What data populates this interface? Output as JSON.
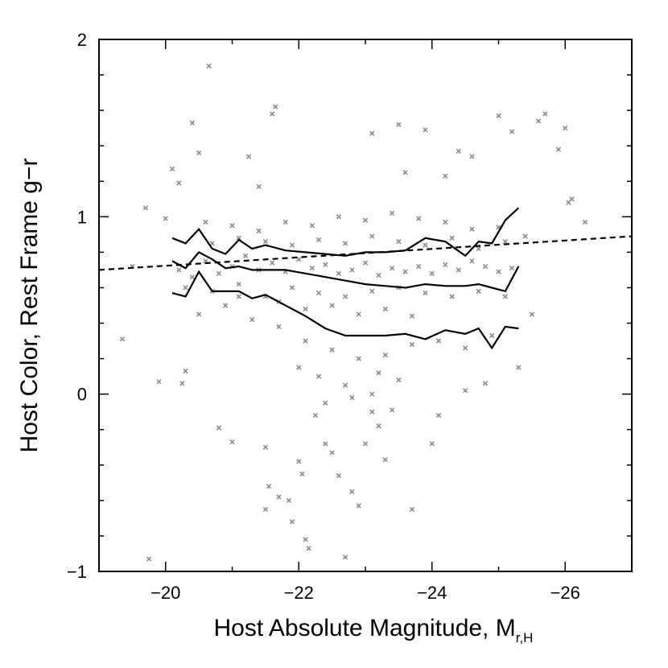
{
  "chart_data": {
    "type": "scatter",
    "xlabel": "Host Absolute Magnitude, M",
    "xlabel_subscript": "r,H",
    "ylabel": "Host Color, Rest Frame g−r",
    "xlim": [
      -19,
      -27
    ],
    "ylim": [
      -1,
      2
    ],
    "x_reversed": true,
    "grid": false,
    "x_ticks": [
      -20,
      -22,
      -24,
      -26
    ],
    "x_tick_labels": [
      "−20",
      "−22",
      "−24",
      "−26"
    ],
    "y_ticks": [
      -1,
      0,
      1,
      2
    ],
    "y_tick_labels": [
      "−1",
      "0",
      "1",
      "2"
    ],
    "point_color": "#8c8c8c",
    "line_color": "#000000",
    "series": [
      {
        "kind": "scatter",
        "points": [
          [
            -19.35,
            0.31
          ],
          [
            -19.5,
            0.72
          ],
          [
            -19.7,
            1.05
          ],
          [
            -19.75,
            -0.93
          ],
          [
            -19.9,
            0.07
          ],
          [
            -20.1,
            1.27
          ],
          [
            -20.2,
            1.19
          ],
          [
            -20.25,
            0.06
          ],
          [
            -20.3,
            0.13
          ],
          [
            -20.4,
            1.53
          ],
          [
            -20.5,
            1.36
          ],
          [
            -20.65,
            1.85
          ],
          [
            -20.8,
            -0.19
          ],
          [
            -21.0,
            -0.27
          ],
          [
            -21.1,
            0.55
          ],
          [
            -21.25,
            1.34
          ],
          [
            -21.4,
            1.17
          ],
          [
            -21.5,
            -0.3
          ],
          [
            -21.6,
            1.58
          ],
          [
            -21.65,
            1.62
          ],
          [
            -21.55,
            -0.52
          ],
          [
            -21.5,
            -0.65
          ],
          [
            -21.7,
            -0.58
          ],
          [
            -21.85,
            -0.6
          ],
          [
            -21.9,
            -0.72
          ],
          [
            -22.0,
            -0.38
          ],
          [
            -22.05,
            -0.45
          ],
          [
            -22.1,
            -0.82
          ],
          [
            -22.15,
            -0.87
          ],
          [
            -22.25,
            -0.12
          ],
          [
            -22.4,
            -0.28
          ],
          [
            -22.5,
            -0.33
          ],
          [
            -22.6,
            -0.46
          ],
          [
            -22.7,
            -0.92
          ],
          [
            -22.8,
            -0.55
          ],
          [
            -22.9,
            -0.63
          ],
          [
            -23.0,
            -0.28
          ],
          [
            -23.1,
            -0.1
          ],
          [
            -23.2,
            -0.18
          ],
          [
            -23.3,
            -0.37
          ],
          [
            -23.4,
            -0.09
          ],
          [
            -23.5,
            1.52
          ],
          [
            -23.1,
            1.47
          ],
          [
            -23.6,
            1.25
          ],
          [
            -23.7,
            -0.65
          ],
          [
            -23.9,
            1.49
          ],
          [
            -24.0,
            -0.28
          ],
          [
            -24.1,
            -0.12
          ],
          [
            -24.2,
            1.23
          ],
          [
            -24.4,
            1.37
          ],
          [
            -24.6,
            1.34
          ],
          [
            -25.0,
            1.57
          ],
          [
            -25.2,
            1.48
          ],
          [
            -25.6,
            1.54
          ],
          [
            -25.7,
            1.58
          ],
          [
            -25.9,
            1.38
          ],
          [
            -26.0,
            1.5
          ],
          [
            -26.1,
            1.1
          ],
          [
            -26.3,
            0.97
          ],
          [
            -26.05,
            1.08
          ],
          [
            -25.5,
            0.45
          ],
          [
            -25.3,
            0.15
          ],
          [
            -24.8,
            0.06
          ],
          [
            -24.5,
            0.02
          ],
          [
            -20.0,
            0.99
          ],
          [
            -20.6,
            0.97
          ],
          [
            -21.0,
            0.95
          ],
          [
            -21.4,
            0.92
          ],
          [
            -21.8,
            0.97
          ],
          [
            -22.2,
            0.95
          ],
          [
            -22.6,
            1.0
          ],
          [
            -23.0,
            0.98
          ],
          [
            -23.4,
            1.02
          ],
          [
            -23.8,
            0.99
          ],
          [
            -24.2,
            0.97
          ],
          [
            -24.6,
            0.93
          ],
          [
            -25.0,
            0.94
          ],
          [
            -25.4,
            0.89
          ],
          [
            -20.2,
            0.7
          ],
          [
            -20.4,
            0.66
          ],
          [
            -20.6,
            0.75
          ],
          [
            -20.8,
            0.68
          ],
          [
            -21.0,
            0.72
          ],
          [
            -21.2,
            0.78
          ],
          [
            -21.4,
            0.7
          ],
          [
            -21.6,
            0.74
          ],
          [
            -21.8,
            0.69
          ],
          [
            -22.0,
            0.76
          ],
          [
            -22.2,
            0.71
          ],
          [
            -22.4,
            0.73
          ],
          [
            -22.6,
            0.68
          ],
          [
            -22.8,
            0.7
          ],
          [
            -23.0,
            0.74
          ],
          [
            -23.2,
            0.67
          ],
          [
            -23.4,
            0.71
          ],
          [
            -23.6,
            0.69
          ],
          [
            -23.8,
            0.72
          ],
          [
            -24.0,
            0.68
          ],
          [
            -24.2,
            0.73
          ],
          [
            -24.4,
            0.7
          ],
          [
            -24.6,
            0.75
          ],
          [
            -24.8,
            0.72
          ],
          [
            -25.0,
            0.69
          ],
          [
            -25.2,
            0.71
          ],
          [
            -20.5,
            0.45
          ],
          [
            -20.9,
            0.5
          ],
          [
            -21.3,
            0.42
          ],
          [
            -21.7,
            0.38
          ],
          [
            -22.1,
            0.3
          ],
          [
            -22.5,
            0.25
          ],
          [
            -22.9,
            0.2
          ],
          [
            -23.3,
            0.22
          ],
          [
            -23.7,
            0.28
          ],
          [
            -24.1,
            0.3
          ],
          [
            -24.5,
            0.26
          ],
          [
            -24.9,
            0.33
          ],
          [
            -22.3,
            0.1
          ],
          [
            -22.7,
            0.05
          ],
          [
            -23.1,
            0.0
          ],
          [
            -23.5,
            0.08
          ],
          [
            -22.0,
            0.15
          ],
          [
            -22.4,
            -0.05
          ],
          [
            -22.8,
            -0.02
          ],
          [
            -23.2,
            0.12
          ],
          [
            -20.7,
            0.85
          ],
          [
            -21.1,
            0.88
          ],
          [
            -21.5,
            0.86
          ],
          [
            -21.9,
            0.84
          ],
          [
            -22.3,
            0.87
          ],
          [
            -22.7,
            0.85
          ],
          [
            -23.1,
            0.89
          ],
          [
            -23.5,
            0.86
          ],
          [
            -23.9,
            0.84
          ],
          [
            -24.3,
            0.88
          ],
          [
            -24.7,
            0.82
          ],
          [
            -25.1,
            0.86
          ],
          [
            -20.3,
            0.6
          ],
          [
            -20.7,
            0.58
          ],
          [
            -21.1,
            0.62
          ],
          [
            -21.5,
            0.55
          ],
          [
            -21.9,
            0.6
          ],
          [
            -22.3,
            0.57
          ],
          [
            -22.7,
            0.55
          ],
          [
            -23.1,
            0.58
          ],
          [
            -23.5,
            0.6
          ],
          [
            -23.9,
            0.57
          ],
          [
            -24.3,
            0.55
          ],
          [
            -24.7,
            0.58
          ],
          [
            -25.1,
            0.55
          ],
          [
            -22.5,
            0.5
          ],
          [
            -22.9,
            0.45
          ],
          [
            -23.3,
            0.48
          ],
          [
            -23.7,
            0.44
          ],
          [
            -22.1,
            0.48
          ],
          [
            -21.7,
            0.52
          ]
        ]
      },
      {
        "kind": "line",
        "style": "solid",
        "name": "",
        "x": [
          -20.1,
          -20.3,
          -20.5,
          -20.7,
          -20.9,
          -21.1,
          -21.3,
          -21.5,
          -21.8,
          -22.1,
          -22.4,
          -22.7,
          -23.0,
          -23.3,
          -23.6,
          -23.9,
          -24.2,
          -24.5,
          -24.7,
          -24.9,
          -25.1,
          -25.3
        ],
        "y": [
          0.88,
          0.85,
          0.93,
          0.82,
          0.79,
          0.87,
          0.82,
          0.84,
          0.81,
          0.8,
          0.79,
          0.78,
          0.8,
          0.8,
          0.81,
          0.88,
          0.86,
          0.78,
          0.86,
          0.85,
          0.98,
          1.05
        ]
      },
      {
        "kind": "line",
        "style": "solid",
        "name": "",
        "x": [
          -20.1,
          -20.3,
          -20.5,
          -20.7,
          -20.9,
          -21.1,
          -21.3,
          -21.5,
          -21.8,
          -22.1,
          -22.4,
          -22.7,
          -23.0,
          -23.3,
          -23.6,
          -23.9,
          -24.2,
          -24.5,
          -24.7,
          -24.9,
          -25.1,
          -25.3
        ],
        "y": [
          0.75,
          0.71,
          0.8,
          0.76,
          0.71,
          0.72,
          0.7,
          0.7,
          0.7,
          0.68,
          0.66,
          0.64,
          0.62,
          0.61,
          0.6,
          0.62,
          0.61,
          0.61,
          0.62,
          0.6,
          0.58,
          0.72
        ]
      },
      {
        "kind": "line",
        "style": "solid",
        "name": "",
        "x": [
          -20.1,
          -20.3,
          -20.5,
          -20.7,
          -20.9,
          -21.1,
          -21.3,
          -21.5,
          -21.8,
          -22.1,
          -22.4,
          -22.7,
          -23.0,
          -23.3,
          -23.6,
          -23.9,
          -24.2,
          -24.5,
          -24.7,
          -24.9,
          -25.1,
          -25.3
        ],
        "y": [
          0.57,
          0.55,
          0.69,
          0.58,
          0.58,
          0.58,
          0.54,
          0.56,
          0.5,
          0.44,
          0.37,
          0.33,
          0.33,
          0.33,
          0.34,
          0.31,
          0.36,
          0.34,
          0.37,
          0.26,
          0.38,
          0.37
        ]
      },
      {
        "kind": "line",
        "style": "dashed",
        "name": "",
        "x": [
          -19,
          -27
        ],
        "y": [
          0.7,
          0.89
        ]
      }
    ]
  }
}
